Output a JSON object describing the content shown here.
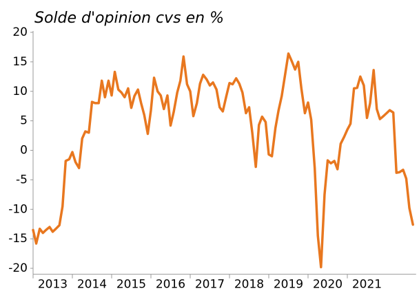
{
  "chart_data": {
    "type": "line",
    "title": "Solde d'opinion cvs en %",
    "x": [
      2013.0,
      2013.08,
      2013.17,
      2013.25,
      2013.33,
      2013.42,
      2013.5,
      2013.58,
      2013.67,
      2013.75,
      2013.83,
      2013.92,
      2014.0,
      2014.08,
      2014.17,
      2014.25,
      2014.33,
      2014.42,
      2014.5,
      2014.58,
      2014.67,
      2014.75,
      2014.83,
      2014.92,
      2015.0,
      2015.08,
      2015.17,
      2015.25,
      2015.33,
      2015.42,
      2015.5,
      2015.58,
      2015.67,
      2015.75,
      2015.83,
      2015.92,
      2016.0,
      2016.08,
      2016.17,
      2016.25,
      2016.33,
      2016.42,
      2016.5,
      2016.58,
      2016.67,
      2016.75,
      2016.83,
      2016.92,
      2017.0,
      2017.08,
      2017.17,
      2017.25,
      2017.33,
      2017.42,
      2017.5,
      2017.58,
      2017.67,
      2017.75,
      2017.83,
      2017.92,
      2018.0,
      2018.08,
      2018.17,
      2018.25,
      2018.33,
      2018.42,
      2018.5,
      2018.58,
      2018.67,
      2018.75,
      2018.83,
      2018.92,
      2019.0,
      2019.08,
      2019.17,
      2019.25,
      2019.33,
      2019.42,
      2019.5,
      2019.58,
      2019.67,
      2019.75,
      2019.83,
      2019.92,
      2020.0,
      2020.08,
      2020.17,
      2020.25,
      2020.33,
      2020.42,
      2020.5,
      2020.58,
      2020.67,
      2020.75,
      2020.83,
      2020.92,
      2021.0,
      2021.08,
      2021.17,
      2021.25,
      2021.33,
      2021.42,
      2021.5,
      2021.58,
      2021.67,
      2021.75,
      2021.83,
      2021.92,
      2022.0,
      2022.08,
      2022.17,
      2022.25,
      2022.33,
      2022.42,
      2022.5,
      2022.58,
      2022.67
    ],
    "series": [
      {
        "color": "#e8771f",
        "values": [
          -13.5,
          -15.8,
          -13.3,
          -14,
          -13.5,
          -13,
          -13.8,
          -13.3,
          -12.7,
          -9.5,
          -1.8,
          -1.5,
          -0.3,
          -2,
          -3,
          2,
          3.2,
          3,
          8.2,
          8,
          8,
          11.8,
          9,
          11.8,
          9.3,
          13.3,
          10.3,
          9.8,
          9,
          10.5,
          7.2,
          9.2,
          10.3,
          8,
          6,
          2.8,
          6.8,
          12.3,
          10,
          9.3,
          7,
          9.3,
          4.2,
          6.5,
          9.8,
          11.8,
          15.9,
          11.2,
          10,
          5.8,
          8,
          11.3,
          12.8,
          12,
          11,
          11.5,
          10.3,
          7.3,
          6.6,
          9.2,
          11.4,
          11.2,
          12.2,
          11.3,
          9.8,
          6.3,
          7.3,
          3,
          -2.8,
          4.3,
          5.7,
          4.8,
          -0.7,
          -1,
          3.8,
          6.8,
          9.2,
          13,
          16.4,
          15.2,
          13.7,
          15,
          10.5,
          6.3,
          8.1,
          5.2,
          -3,
          -14.5,
          -19.8,
          -7.5,
          -1.7,
          -2.2,
          -1.8,
          -3.2,
          1.1,
          2.3,
          3.5,
          4.5,
          10.5,
          10.6,
          12.5,
          11,
          5.5,
          8,
          13.6,
          7,
          5.3,
          5.8,
          6.3,
          6.8,
          6.4,
          -3.8,
          -3.7,
          -3.3,
          -4.8,
          -9.8,
          -12.6
        ]
      }
    ],
    "xlim": [
      2013,
      2022.75
    ],
    "xticks": [
      {
        "value": 2013,
        "label": "2013"
      },
      {
        "value": 2014,
        "label": "2014"
      },
      {
        "value": 2015,
        "label": "2015"
      },
      {
        "value": 2016,
        "label": "2016"
      },
      {
        "value": 2017,
        "label": "2017"
      },
      {
        "value": 2018,
        "label": "2018"
      },
      {
        "value": 2019,
        "label": "2019"
      },
      {
        "value": 2020,
        "label": "2020"
      },
      {
        "value": 2021,
        "label": "2021"
      }
    ],
    "ylim": [
      -21,
      20
    ],
    "yticks": [
      -20,
      -15,
      -10,
      -5,
      0,
      5,
      10,
      15,
      20
    ],
    "grid": false
  }
}
